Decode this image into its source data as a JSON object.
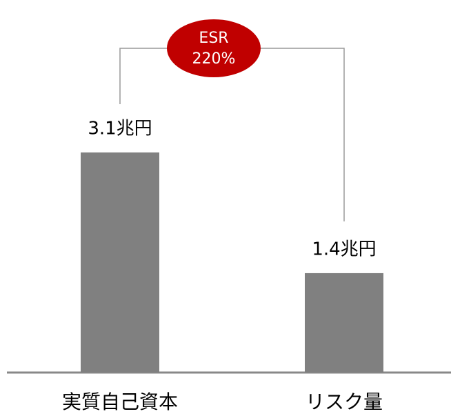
{
  "chart_data": {
    "type": "bar",
    "categories": [
      "実質自己資本",
      "リスク量"
    ],
    "values": [
      3.1,
      1.4
    ],
    "value_labels": [
      "3.1兆円",
      "1.4兆円"
    ],
    "color": "#808080",
    "annotation": {
      "lines": [
        "ESR",
        "220%"
      ],
      "color": "#c00000"
    }
  }
}
